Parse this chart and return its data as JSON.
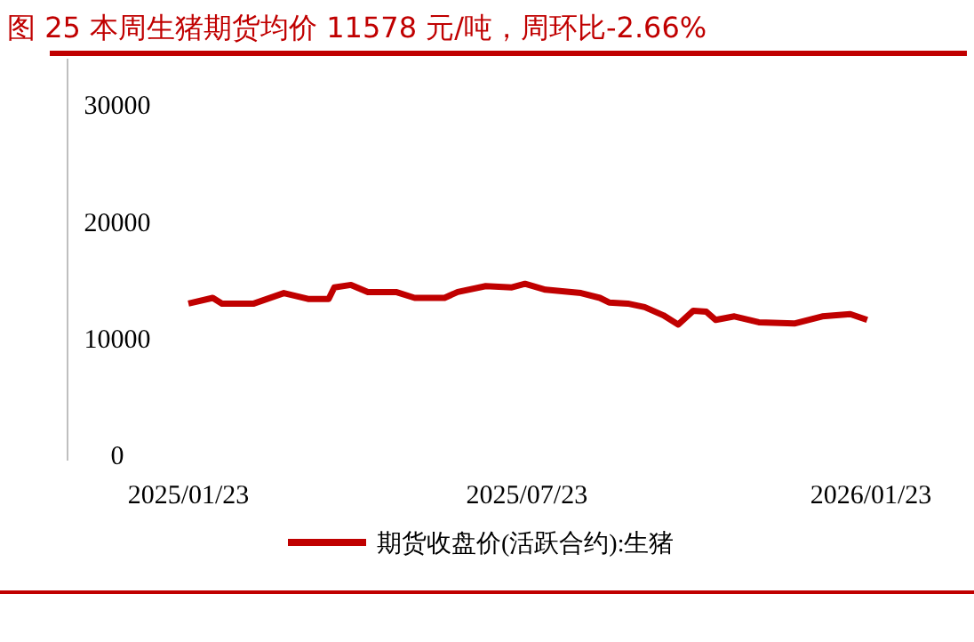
{
  "chart_data": {
    "type": "line",
    "title": "图 25 本周生猪期货均价 11578 元/吨，周环比-2.66%",
    "x": [
      "2025-01-23",
      "2025-02-05",
      "2025-02-10",
      "2025-02-27",
      "2025-03-15",
      "2025-03-28",
      "2025-04-08",
      "2025-04-11",
      "2025-04-20",
      "2025-04-29",
      "2025-05-14",
      "2025-05-24",
      "2025-06-09",
      "2025-06-16",
      "2025-07-01",
      "2025-07-15",
      "2025-07-22",
      "2025-08-02",
      "2025-08-21",
      "2025-08-31",
      "2025-09-05",
      "2025-09-15",
      "2025-09-24",
      "2025-10-04",
      "2025-10-12",
      "2025-10-20",
      "2025-10-27",
      "2025-11-01",
      "2025-11-11",
      "2025-11-24",
      "2025-12-13",
      "2025-12-28",
      "2026-01-12",
      "2026-01-21"
    ],
    "series": [
      {
        "name": "期货收盘价(活跃合约):生猪",
        "color": "#c00000",
        "values": [
          13000,
          13500,
          13000,
          13000,
          13900,
          13400,
          13400,
          14400,
          14600,
          14000,
          14000,
          13500,
          13500,
          14000,
          14500,
          14400,
          14700,
          14200,
          13900,
          13500,
          13100,
          13000,
          12700,
          12000,
          11200,
          12400,
          12300,
          11600,
          11900,
          11400,
          11300,
          11900,
          12100,
          11600
        ]
      }
    ],
    "xlim": [
      "2025-01-23",
      "2026-01-23"
    ],
    "xticks": [
      {
        "value": "2025-01-23",
        "label": "2025/01/23"
      },
      {
        "value": "2025-07-23",
        "label": "2025/07/23"
      },
      {
        "value": "2026-01-23",
        "label": "2026/01/23"
      }
    ],
    "ylim": [
      0,
      34000
    ],
    "yticks": [
      0,
      10000,
      20000,
      30000
    ],
    "legend": "bottom",
    "line_style": "solid"
  }
}
